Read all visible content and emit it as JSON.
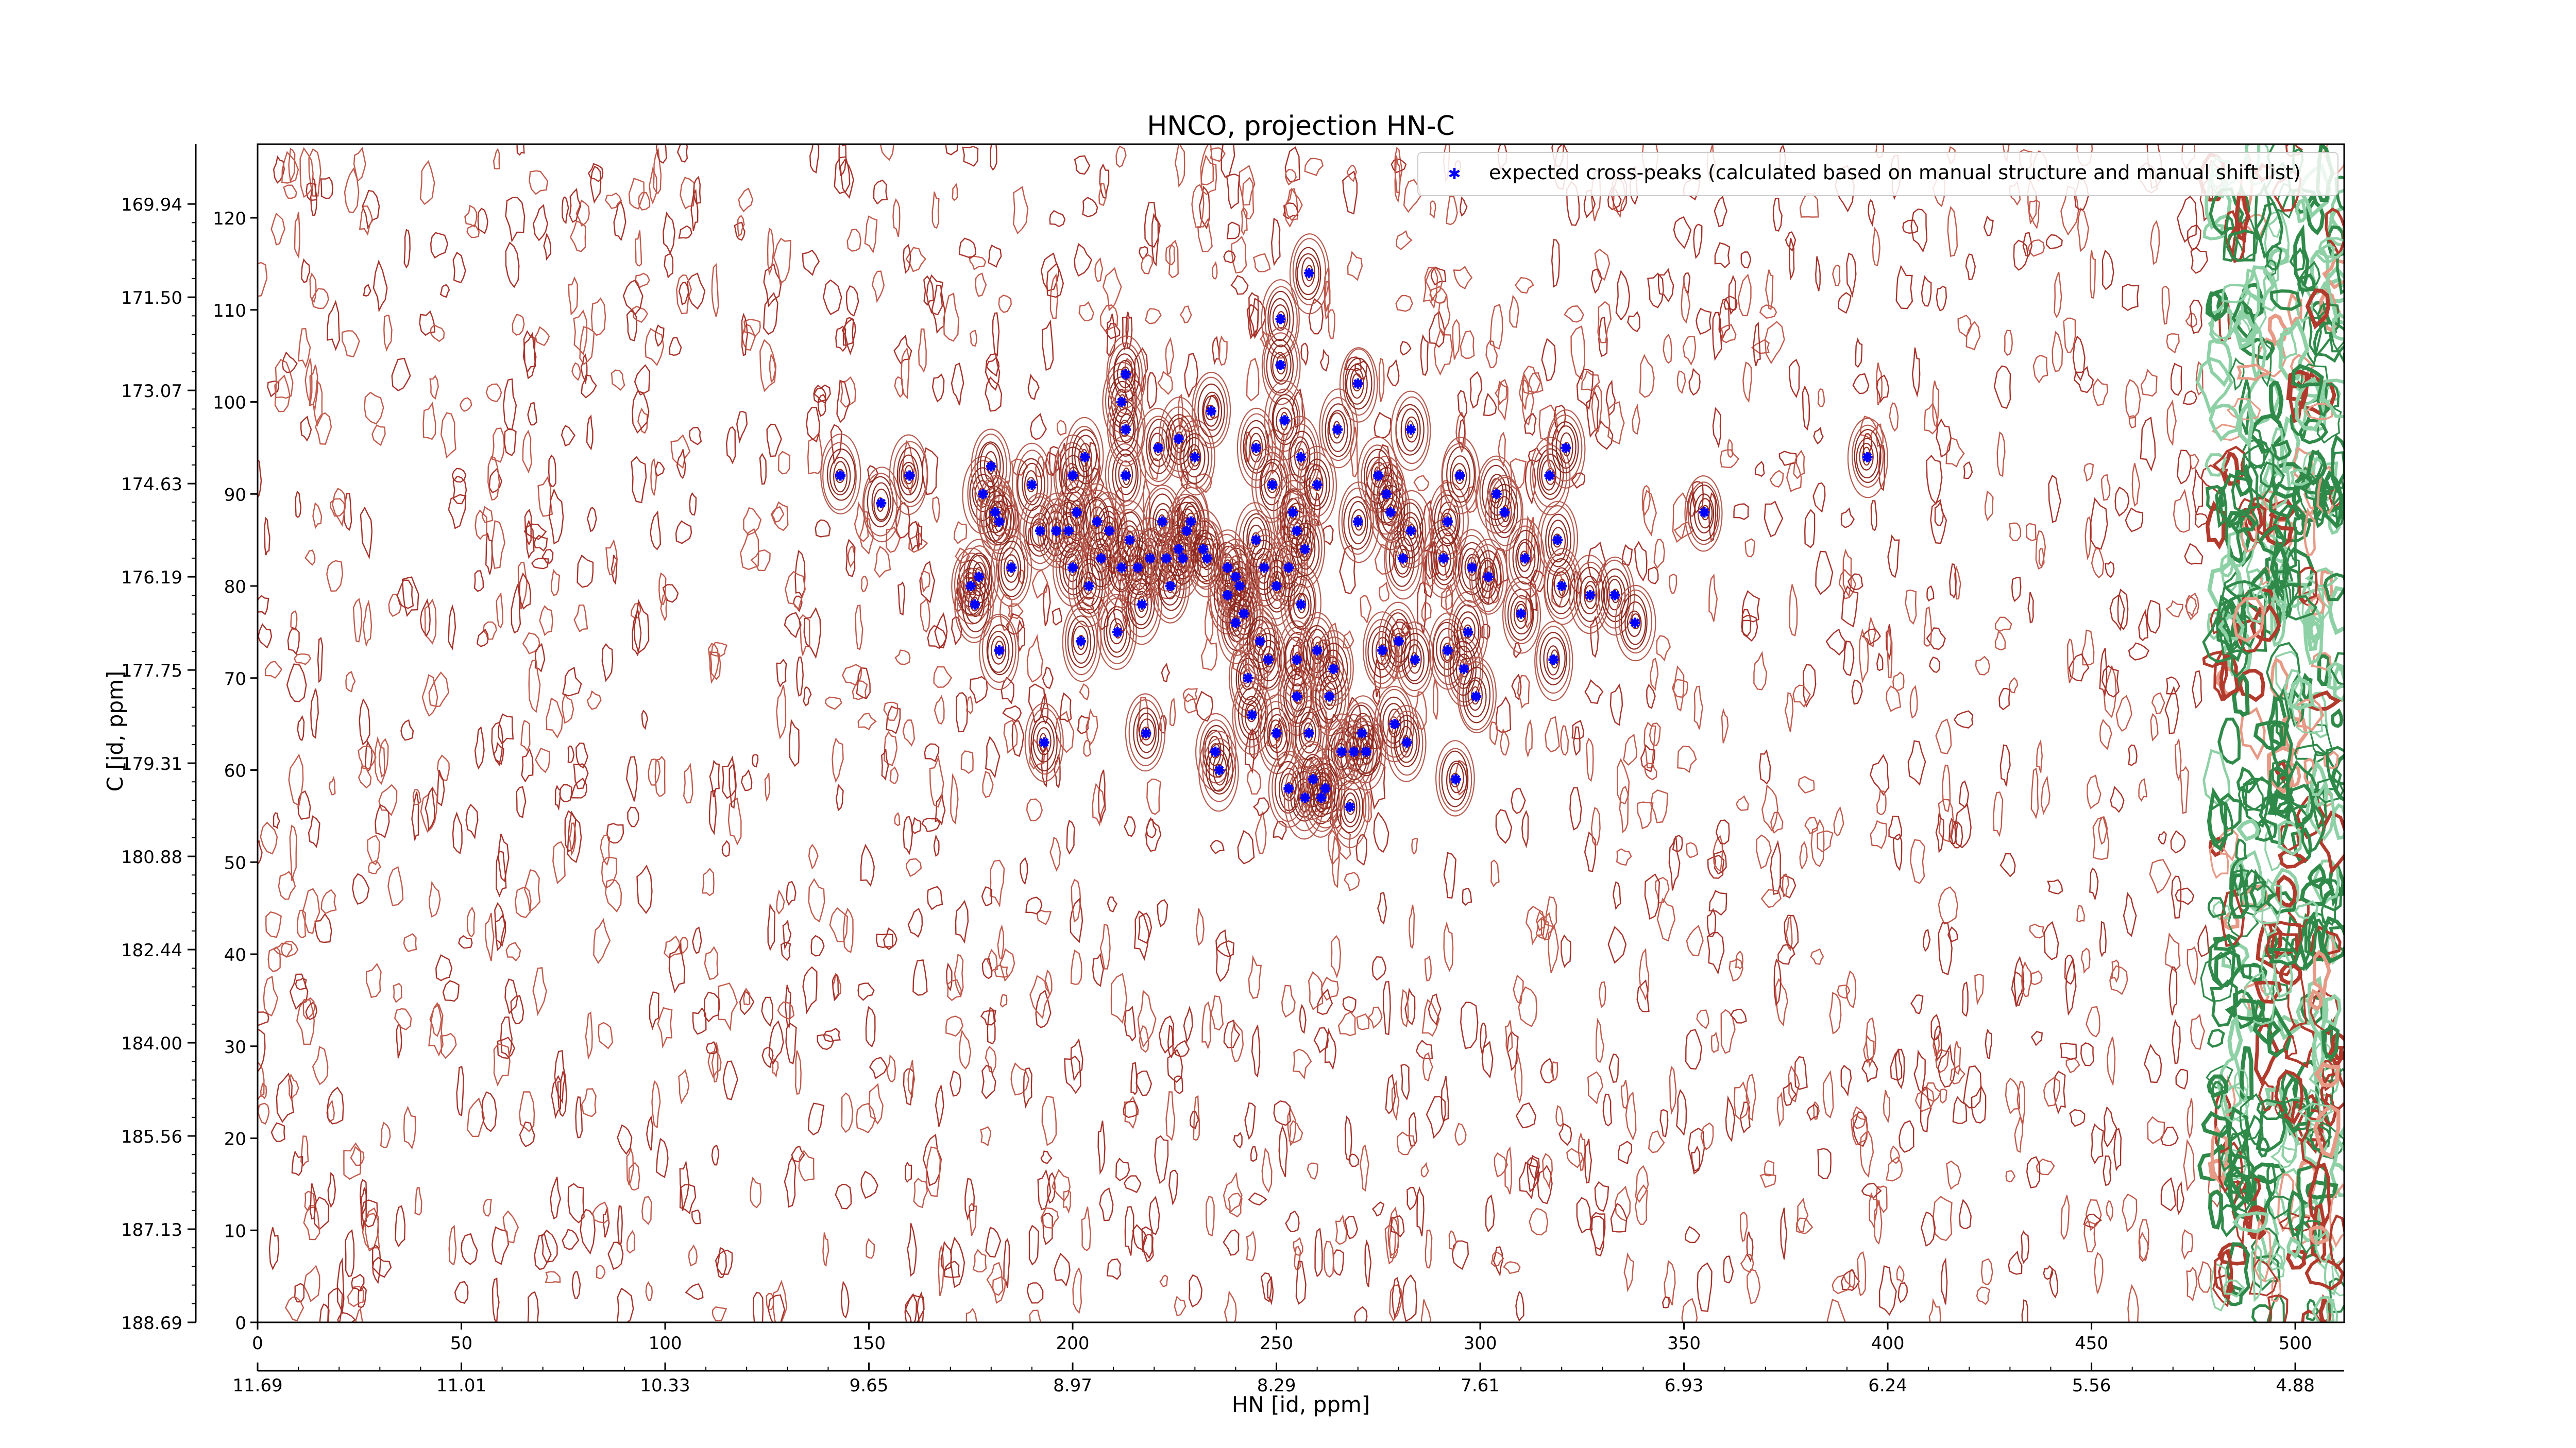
{
  "chart_data": {
    "type": "scatter",
    "title": "HNCO, projection HN-C",
    "xlabel": "HN [id, ppm]",
    "ylabel": "C [id, ppm]",
    "xlim": [
      0,
      512
    ],
    "ylim": [
      0,
      128
    ],
    "x_ticks": [
      0,
      50,
      100,
      150,
      200,
      250,
      300,
      350,
      400,
      450,
      500
    ],
    "y_ticks": [
      0,
      10,
      20,
      30,
      40,
      50,
      60,
      70,
      80,
      90,
      100,
      110,
      120
    ],
    "x_ppm_ticks": [
      "11.69",
      "11.01",
      "10.33",
      "9.65",
      "8.97",
      "8.29",
      "7.61",
      "6.93",
      "6.24",
      "5.56",
      "4.88"
    ],
    "y_ppm_ticks": [
      "188.69",
      "187.13",
      "185.56",
      "184.00",
      "182.44",
      "180.88",
      "179.31",
      "177.75",
      "176.19",
      "174.63",
      "173.07",
      "171.50",
      "169.94"
    ],
    "legend_position": "top-right",
    "grid": false,
    "series": [
      {
        "name": "expected cross-peaks (calculated based on manual structure and manual shift list)",
        "color": "#0000ff",
        "marker": "star",
        "points": [
          [
            143,
            92
          ],
          [
            153,
            89
          ],
          [
            160,
            92
          ],
          [
            175,
            80
          ],
          [
            176,
            78
          ],
          [
            177,
            81
          ],
          [
            178,
            90
          ],
          [
            180,
            93
          ],
          [
            181,
            88
          ],
          [
            182,
            87
          ],
          [
            182,
            73
          ],
          [
            185,
            82
          ],
          [
            190,
            91
          ],
          [
            192,
            86
          ],
          [
            196,
            86
          ],
          [
            193,
            63
          ],
          [
            199,
            86
          ],
          [
            200,
            92
          ],
          [
            201,
            88
          ],
          [
            200,
            82
          ],
          [
            202,
            74
          ],
          [
            203,
            94
          ],
          [
            204,
            80
          ],
          [
            206,
            87
          ],
          [
            207,
            83
          ],
          [
            209,
            86
          ],
          [
            211,
            75
          ],
          [
            212,
            82
          ],
          [
            213,
            92
          ],
          [
            212,
            100
          ],
          [
            213,
            103
          ],
          [
            213,
            97
          ],
          [
            214,
            85
          ],
          [
            216,
            82
          ],
          [
            217,
            78
          ],
          [
            218,
            64
          ],
          [
            219,
            83
          ],
          [
            221,
            95
          ],
          [
            222,
            87
          ],
          [
            223,
            83
          ],
          [
            224,
            80
          ],
          [
            226,
            96
          ],
          [
            226,
            84
          ],
          [
            227,
            83
          ],
          [
            228,
            86
          ],
          [
            229,
            87
          ],
          [
            230,
            94
          ],
          [
            232,
            84
          ],
          [
            233,
            83
          ],
          [
            234,
            99
          ],
          [
            235,
            62
          ],
          [
            236,
            60
          ],
          [
            238,
            82
          ],
          [
            238,
            79
          ],
          [
            240,
            81
          ],
          [
            240,
            76
          ],
          [
            241,
            80
          ],
          [
            242,
            77
          ],
          [
            243,
            70
          ],
          [
            244,
            66
          ],
          [
            245,
            95
          ],
          [
            245,
            85
          ],
          [
            246,
            74
          ],
          [
            247,
            82
          ],
          [
            248,
            72
          ],
          [
            249,
            91
          ],
          [
            250,
            64
          ],
          [
            250,
            80
          ],
          [
            251,
            109
          ],
          [
            251,
            104
          ],
          [
            252,
            98
          ],
          [
            253,
            82
          ],
          [
            253,
            58
          ],
          [
            254,
            88
          ],
          [
            255,
            68
          ],
          [
            255,
            86
          ],
          [
            255,
            72
          ],
          [
            256,
            78
          ],
          [
            256,
            94
          ],
          [
            257,
            57
          ],
          [
            257,
            84
          ],
          [
            258,
            64
          ],
          [
            258,
            114
          ],
          [
            259,
            59
          ],
          [
            260,
            91
          ],
          [
            260,
            73
          ],
          [
            261,
            57
          ],
          [
            262,
            58
          ],
          [
            263,
            68
          ],
          [
            264,
            71
          ],
          [
            265,
            97
          ],
          [
            266,
            62
          ],
          [
            268,
            56
          ],
          [
            269,
            62
          ],
          [
            270,
            102
          ],
          [
            270,
            87
          ],
          [
            271,
            64
          ],
          [
            272,
            62
          ],
          [
            275,
            92
          ],
          [
            276,
            73
          ],
          [
            277,
            90
          ],
          [
            278,
            88
          ],
          [
            279,
            65
          ],
          [
            280,
            74
          ],
          [
            281,
            83
          ],
          [
            282,
            63
          ],
          [
            283,
            86
          ],
          [
            283,
            97
          ],
          [
            284,
            72
          ],
          [
            291,
            83
          ],
          [
            292,
            73
          ],
          [
            292,
            87
          ],
          [
            294,
            59
          ],
          [
            295,
            92
          ],
          [
            296,
            71
          ],
          [
            297,
            75
          ],
          [
            298,
            82
          ],
          [
            299,
            68
          ],
          [
            302,
            81
          ],
          [
            304,
            90
          ],
          [
            306,
            88
          ],
          [
            310,
            77
          ],
          [
            311,
            83
          ],
          [
            317,
            92
          ],
          [
            318,
            72
          ],
          [
            319,
            85
          ],
          [
            320,
            80
          ],
          [
            321,
            95
          ],
          [
            327,
            79
          ],
          [
            333,
            79
          ],
          [
            338,
            76
          ],
          [
            355,
            88
          ],
          [
            395,
            94
          ]
        ]
      }
    ]
  }
}
